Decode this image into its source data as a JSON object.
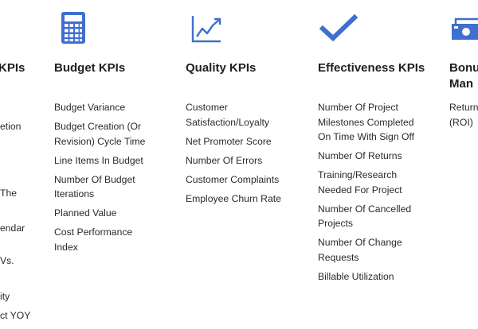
{
  "colors": {
    "icon": "#3f6fcf",
    "text": "#1f1f1f"
  },
  "left_partial": {
    "title": "KPIs",
    "fragments": [
      "etion",
      "The",
      "endar",
      "Vs.",
      "ity",
      "ct YOY"
    ]
  },
  "columns": [
    {
      "icon": "calculator-icon",
      "title": "Budget KPIs",
      "items": [
        [
          "Budget Variance"
        ],
        [
          "Budget Creation (Or",
          "Revision) Cycle Time"
        ],
        [
          "Line Items In Budget"
        ],
        [
          "Number Of Budget",
          "Iterations"
        ],
        [
          "Planned Value"
        ],
        [
          "Cost Performance",
          "Index"
        ]
      ]
    },
    {
      "icon": "line-chart-icon",
      "title": "Quality KPIs",
      "items": [
        [
          "Customer",
          "Satisfaction/Loyalty"
        ],
        [
          "Net Promoter Score"
        ],
        [
          "Number Of Errors"
        ],
        [
          "Customer Complaints"
        ],
        [
          "Employee Churn Rate"
        ]
      ]
    },
    {
      "icon": "checkmark-icon",
      "title": "Effectiveness KPIs",
      "items": [
        [
          "Number Of Project",
          "Milestones Completed",
          "On Time With Sign Off"
        ],
        [
          "Number Of Returns"
        ],
        [
          "Training/Research",
          "Needed For Project"
        ],
        [
          "Number Of Cancelled",
          "Projects"
        ],
        [
          "Number Of Change",
          "Requests"
        ],
        [
          "Billable Utilization"
        ]
      ]
    }
  ],
  "right_partial": {
    "icon": "money-icon",
    "title_lines": [
      "Bonu",
      "Man"
    ],
    "items": [
      [
        "Return",
        "(ROI)"
      ]
    ]
  }
}
